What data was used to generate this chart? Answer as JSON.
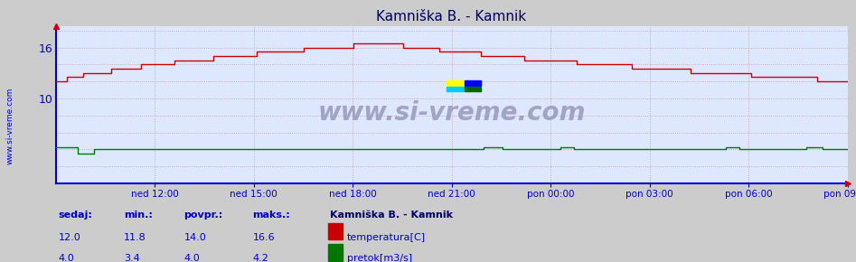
{
  "title": "Kamniška B. - Kamnik",
  "fig_bg_color": "#cccccc",
  "plot_bg_color": "#dde8ff",
  "grid_color": "#cc9999",
  "x_tick_labels": [
    "ned 12:00",
    "ned 15:00",
    "ned 18:00",
    "ned 21:00",
    "pon 00:00",
    "pon 03:00",
    "pon 06:00",
    "pon 09:00"
  ],
  "x_tick_fracs": [
    0.125,
    0.25,
    0.375,
    0.5,
    0.625,
    0.75,
    0.875,
    1.0
  ],
  "y_ticks": [
    10,
    16
  ],
  "ylim": [
    0,
    18.5
  ],
  "temp_color": "#cc0000",
  "flow_color": "#007700",
  "axis_color": "#0000cc",
  "watermark": "www.si-vreme.com",
  "watermark_color": "#9999bb",
  "sidebar_text": "www.si-vreme.com",
  "sidebar_color": "#0000cc",
  "legend_title": "Kamniška B. - Kamnik",
  "legend_entries": [
    "temperatura[C]",
    "pretok[m3/s]"
  ],
  "legend_colors": [
    "#cc0000",
    "#007700"
  ],
  "stats_labels": [
    "sedaj:",
    "min.:",
    "povpr.:",
    "maks.:"
  ],
  "stats_temp": [
    12.0,
    11.8,
    14.0,
    16.6
  ],
  "stats_flow": [
    4.0,
    3.4,
    4.0,
    4.2
  ],
  "n_points": 288
}
